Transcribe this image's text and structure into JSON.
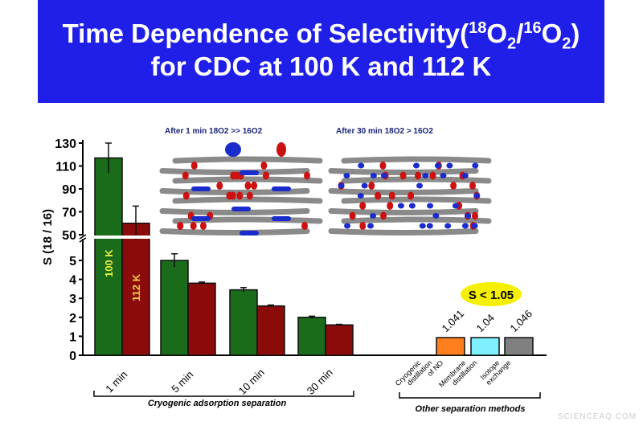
{
  "title_line1_a": "Time Dependence of Selectivity(",
  "title_iso1": "18",
  "title_o2a": "O",
  "title_sub2": "2",
  "title_slash": "/",
  "title_iso2": "16",
  "title_o2b": "O",
  "title_close": ")",
  "title_line2": "for CDC at 100 K and 112 K",
  "illustration_labels": [
    "After 1 min 18O2 >> 16O2",
    "After 30 min 18O2 > 16O2"
  ],
  "watermark": "SCIENCEAQ.COM",
  "chart_data": {
    "type": "bar",
    "ylabel": "S (18 / 16)",
    "upper_axis": {
      "ylim": [
        50,
        130
      ],
      "ticks": [
        "50",
        "70",
        "90",
        "110",
        "130"
      ]
    },
    "lower_axis": {
      "ylim": [
        0,
        6.2
      ],
      "ticks": [
        "0",
        "1",
        "2",
        "3",
        "4",
        "5"
      ]
    },
    "categories": [
      "1 min",
      "5 min",
      "10 min",
      "30 min"
    ],
    "series": [
      {
        "name": "100 K",
        "color": "#1a6b1a",
        "values": [
          117,
          5.0,
          3.45,
          2.0
        ],
        "errors": [
          13,
          0.35,
          0.12,
          0.06
        ]
      },
      {
        "name": "112 K",
        "color": "#8b0a0a",
        "values": [
          60,
          3.8,
          2.6,
          1.6
        ],
        "errors": [
          15,
          0.06,
          0.05,
          0.03
        ]
      }
    ],
    "group_label": "Cryogenic adsorption separation",
    "other_methods": {
      "label": "Other separation methods",
      "annotation": "S < 1.05",
      "items": [
        {
          "name": "Cryogenic distillation of NO",
          "value": 1.041,
          "value_label": "1.041",
          "color": "#ff7f1e"
        },
        {
          "name": "Membrane distillation",
          "value": 1.04,
          "value_label": "1.04",
          "color": "#7ff0ff"
        },
        {
          "name": "Isotope exchange",
          "value": 1.046,
          "value_label": "1.046",
          "color": "#808080"
        }
      ]
    }
  }
}
